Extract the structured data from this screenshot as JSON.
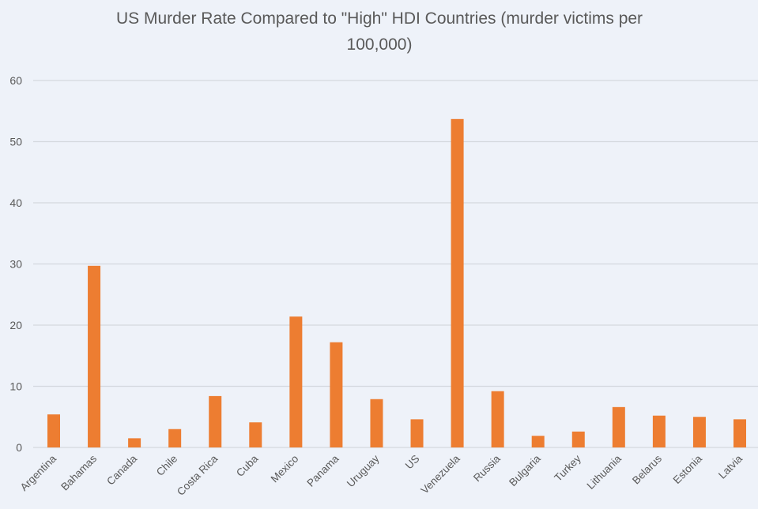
{
  "chart_data": {
    "type": "bar",
    "title_lines": [
      "US Murder Rate Compared to \"High\" HDI Countries (murder victims per",
      "100,000)"
    ],
    "xlabel": "",
    "ylabel": "",
    "ylim": [
      0,
      60
    ],
    "yticks": [
      0,
      10,
      20,
      30,
      40,
      50,
      60
    ],
    "grid": true,
    "legend": "none",
    "categories": [
      "Argentina",
      "Bahamas",
      "Canada",
      "Chile",
      "Costa Rica",
      "Cuba",
      "Mexico",
      "Panama",
      "Uruguay",
      "US",
      "Venezuela",
      "Russia",
      "Bulgaria",
      "Turkey",
      "Lithuania",
      "Belarus",
      "Estonia",
      "Latvia"
    ],
    "values": [
      5.4,
      29.7,
      1.5,
      3.0,
      8.4,
      4.1,
      21.4,
      17.2,
      7.9,
      4.6,
      53.7,
      9.2,
      1.9,
      2.6,
      6.6,
      5.2,
      5.0,
      4.6
    ],
    "bar_color": "#ed7d31"
  }
}
